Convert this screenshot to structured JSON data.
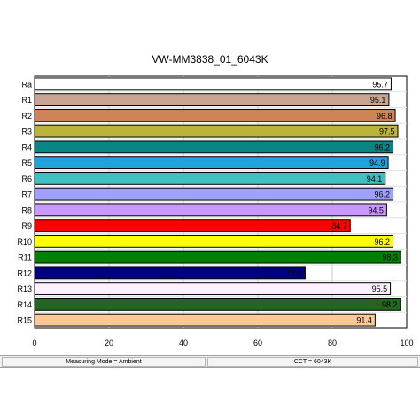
{
  "chart_data": {
    "type": "bar",
    "orientation": "horizontal",
    "title": "VW-MM3838_01_6043K",
    "xlabel": "",
    "ylabel": "",
    "xlim": [
      0,
      100
    ],
    "xticks": [
      0,
      20,
      40,
      60,
      80,
      100
    ],
    "grid": true,
    "categories": [
      "Ra",
      "R1",
      "R2",
      "R3",
      "R4",
      "R5",
      "R6",
      "R7",
      "R8",
      "R9",
      "R10",
      "R11",
      "R12",
      "R13",
      "R14",
      "R15"
    ],
    "values": [
      95.7,
      95.1,
      96.8,
      97.5,
      96.2,
      94.9,
      94.1,
      96.2,
      94.5,
      84.7,
      96.2,
      98.3,
      72.6,
      95.5,
      98.2,
      91.4
    ],
    "colors": [
      "#ffffff",
      "#c8a493",
      "#cd8457",
      "#bcb43a",
      "#0a8585",
      "#1fa3d8",
      "#3fc0c0",
      "#a0a0ff",
      "#c898ff",
      "#ff0000",
      "#ffff00",
      "#008000",
      "#000080",
      "#fff0ff",
      "#226622",
      "#ffc896"
    ]
  },
  "status_bar": {
    "measuring_mode": "Measuring Mode = Ambient",
    "cct": "CCT = 6043K"
  }
}
